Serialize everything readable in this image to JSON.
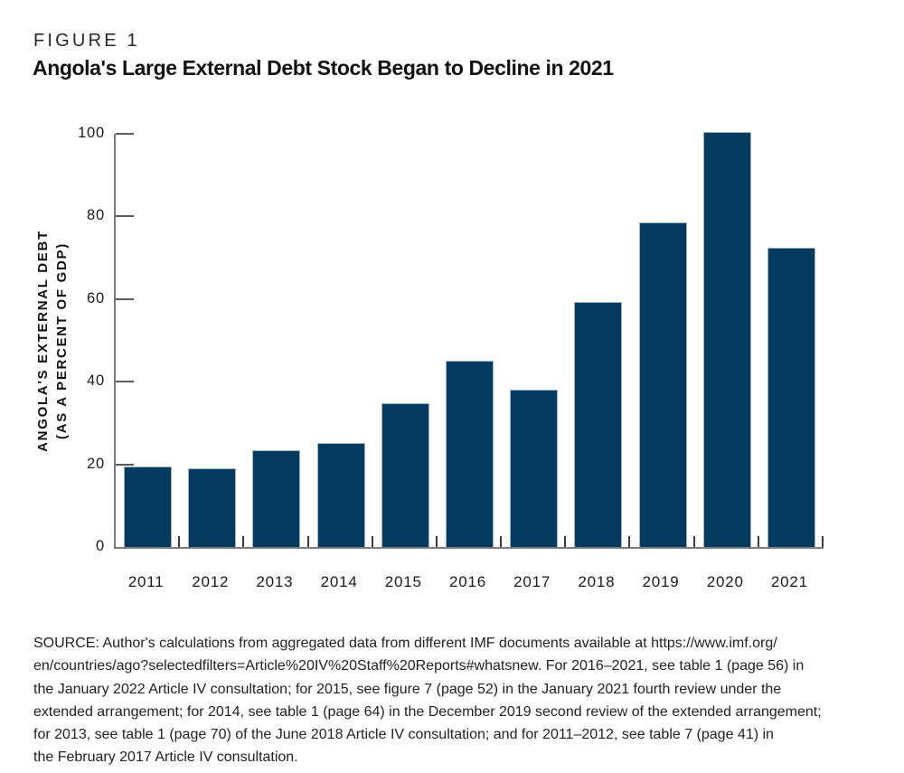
{
  "header": {
    "figure_label": "FIGURE 1",
    "title": "Angola's Large External Debt Stock Began to Decline in 2021"
  },
  "chart_data": {
    "type": "bar",
    "title": "Angola's Large External Debt Stock Began to Decline in 2021",
    "categories": [
      "2011",
      "2012",
      "2013",
      "2014",
      "2015",
      "2016",
      "2017",
      "2018",
      "2019",
      "2020",
      "2021"
    ],
    "values": [
      19.5,
      19.0,
      23.5,
      25.1,
      34.9,
      45.0,
      38.1,
      59.2,
      78.6,
      100.5,
      72.5
    ],
    "xlabel": "",
    "ylabel_line1": "ANGOLA'S EXTERNAL DEBT",
    "ylabel_line2": "(AS A PERCENT OF GDP)",
    "yticks": [
      0,
      20,
      40,
      60,
      80,
      100
    ],
    "ylim": [
      0,
      100
    ],
    "grid": false,
    "legend": "none",
    "bar_color": "#063a5e",
    "bar_border_color": "#9fb4c3",
    "axis_color": "#7d7d7d"
  },
  "source": {
    "lines": [
      "SOURCE: Author's calculations from aggregated data from different IMF documents available at https://www.imf.org/",
      "en/countries/ago?selectedfilters=Article%20IV%20Staff%20Reports#whatsnew. For 2016–2021, see table 1 (page 56) in",
      "the January 2022 Article IV consultation; for 2015, see figure 7 (page 52) in the January 2021 fourth review under the",
      "extended arrangement; for 2014, see table 1 (page 64) in the December 2019 second review of the extended arrangement;",
      "for 2013, see table 1 (page 70) of the June 2018 Article IV consultation; and for 2011–2012, see table 7 (page 41) in",
      "the February 2017 Article IV consultation."
    ]
  }
}
